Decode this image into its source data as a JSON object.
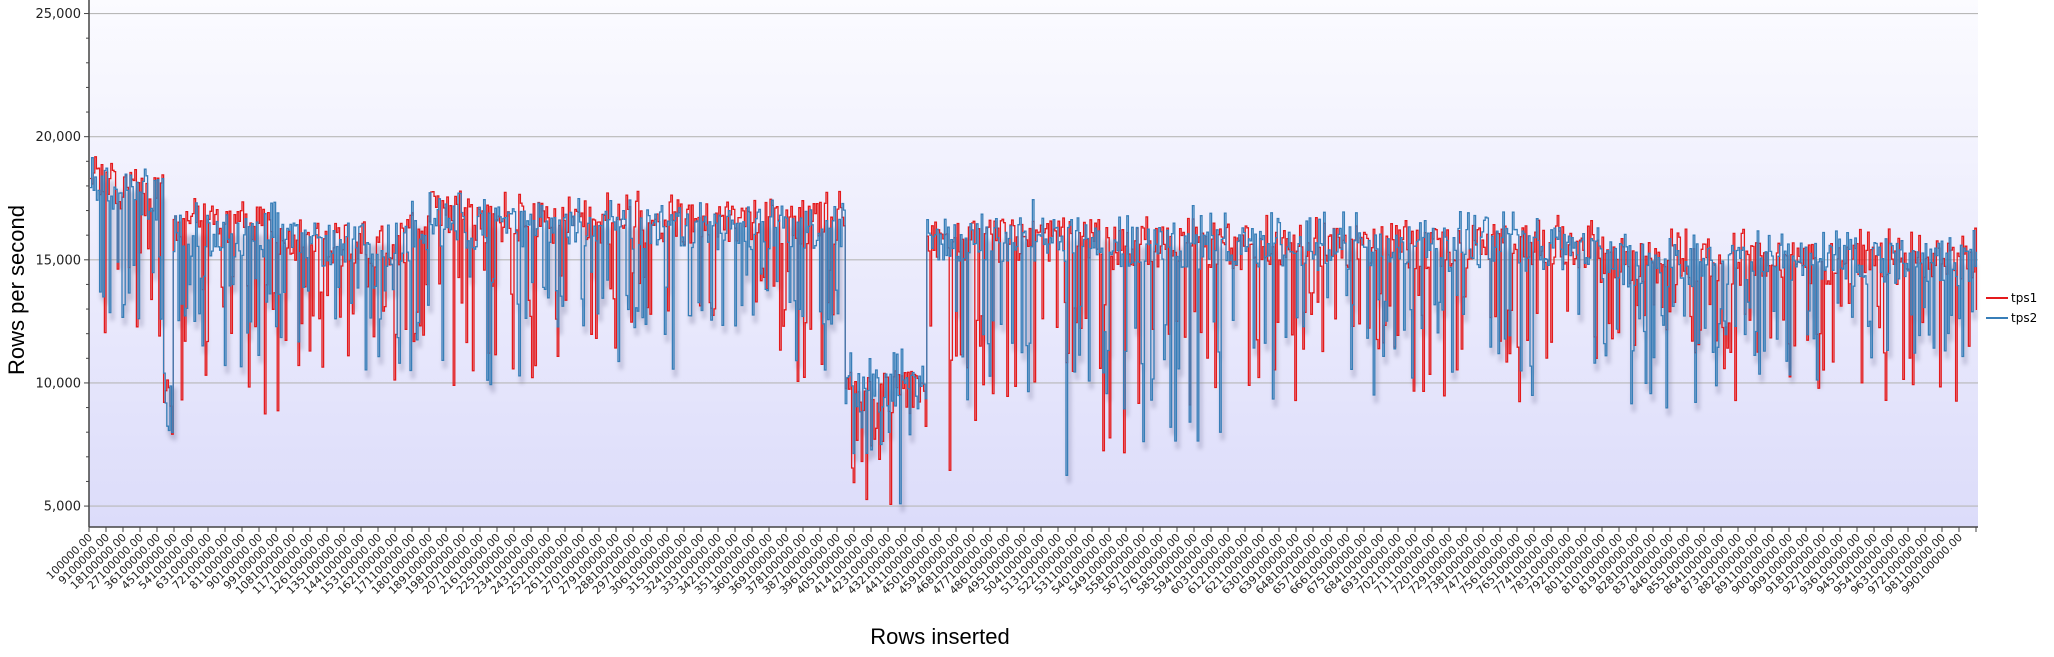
{
  "chart_data": {
    "type": "line",
    "title": "",
    "xlabel": "Rows inserted",
    "ylabel": "Rows per second",
    "ylim": [
      4150,
      25550
    ],
    "xlim": [
      100000,
      999100000
    ],
    "grid": {
      "horizontal": true,
      "vertical": false
    },
    "legend_position": "right",
    "y_ticks": [
      {
        "value": 5000,
        "label": "5,000"
      },
      {
        "value": 10000,
        "label": "10,000"
      },
      {
        "value": 15000,
        "label": "15,000"
      },
      {
        "value": 20000,
        "label": "20,000"
      },
      {
        "value": 25000,
        "label": "25,000"
      }
    ],
    "x_tick_start": 100000,
    "x_tick_step": 9000000,
    "x_tick_count": 111,
    "x_tick_label_suffix": ".00",
    "series": [
      {
        "name": "tps1",
        "color": "#e41a1c",
        "segments": [
          {
            "x_from": 100000,
            "x_to": 12000000,
            "high": 19200,
            "mid": 18300,
            "low": 11500,
            "min": 9600
          },
          {
            "x_from": 12000000,
            "x_to": 26000000,
            "high": 18800,
            "mid": 17800,
            "low": 12000,
            "min": 10800
          },
          {
            "x_from": 26000000,
            "x_to": 39000000,
            "high": 18500,
            "mid": 17500,
            "low": 12500,
            "min": 11000
          },
          {
            "x_from": 39000000,
            "x_to": 44000000,
            "high": 10200,
            "mid": 9500,
            "low": 7500,
            "min": 7000
          },
          {
            "x_from": 44000000,
            "x_to": 100000000,
            "high": 17500,
            "mid": 16300,
            "low": 12000,
            "min": 8700
          },
          {
            "x_from": 100000000,
            "x_to": 170000000,
            "high": 16700,
            "mid": 15600,
            "low": 11500,
            "min": 10000
          },
          {
            "x_from": 170000000,
            "x_to": 200000000,
            "high": 18300,
            "mid": 17000,
            "low": 11500,
            "min": 9900
          },
          {
            "x_from": 200000000,
            "x_to": 400000000,
            "high": 17800,
            "mid": 16500,
            "low": 12000,
            "min": 10000
          },
          {
            "x_from": 400000000,
            "x_to": 443000000,
            "high": 10500,
            "mid": 9600,
            "low": 6500,
            "min": 4600
          },
          {
            "x_from": 443000000,
            "x_to": 540000000,
            "high": 17000,
            "mid": 15800,
            "low": 9500,
            "min": 6000
          },
          {
            "x_from": 540000000,
            "x_to": 620000000,
            "high": 16800,
            "mid": 15500,
            "low": 9000,
            "min": 6500
          },
          {
            "x_from": 620000000,
            "x_to": 800000000,
            "high": 16800,
            "mid": 15500,
            "low": 11000,
            "min": 9200
          },
          {
            "x_from": 800000000,
            "x_to": 999100000,
            "high": 16300,
            "mid": 14800,
            "low": 11000,
            "min": 9100
          }
        ]
      },
      {
        "name": "tps2",
        "color": "#377eb8",
        "segments": [
          {
            "x_from": 100000,
            "x_to": 12000000,
            "high": 19500,
            "mid": 18200,
            "low": 10500,
            "min": 8500
          },
          {
            "x_from": 12000000,
            "x_to": 26000000,
            "high": 19300,
            "mid": 17800,
            "low": 11500,
            "min": 7200
          },
          {
            "x_from": 26000000,
            "x_to": 39000000,
            "high": 18800,
            "mid": 17500,
            "low": 12000,
            "min": 10800
          },
          {
            "x_from": 39000000,
            "x_to": 44000000,
            "high": 10400,
            "mid": 9800,
            "low": 8000,
            "min": 7800
          },
          {
            "x_from": 44000000,
            "x_to": 100000000,
            "high": 17500,
            "mid": 16000,
            "low": 12000,
            "min": 10200
          },
          {
            "x_from": 100000000,
            "x_to": 170000000,
            "high": 16500,
            "mid": 15600,
            "low": 11500,
            "min": 10000
          },
          {
            "x_from": 170000000,
            "x_to": 200000000,
            "high": 17800,
            "mid": 16300,
            "low": 11500,
            "min": 9900
          },
          {
            "x_from": 200000000,
            "x_to": 400000000,
            "high": 17500,
            "mid": 16300,
            "low": 12000,
            "min": 9800
          },
          {
            "x_from": 400000000,
            "x_to": 443000000,
            "high": 11700,
            "mid": 9700,
            "low": 6800,
            "min": 4800
          },
          {
            "x_from": 443000000,
            "x_to": 540000000,
            "high": 17500,
            "mid": 15800,
            "low": 9500,
            "min": 5800
          },
          {
            "x_from": 540000000,
            "x_to": 620000000,
            "high": 17200,
            "mid": 15500,
            "low": 9000,
            "min": 6600
          },
          {
            "x_from": 620000000,
            "x_to": 800000000,
            "high": 17000,
            "mid": 15400,
            "low": 11000,
            "min": 9300
          },
          {
            "x_from": 800000000,
            "x_to": 999100000,
            "high": 16200,
            "mid": 14800,
            "low": 11000,
            "min": 8900
          }
        ]
      }
    ],
    "annotations": []
  },
  "legend": {
    "items": [
      {
        "label": "tps1",
        "color": "#e41a1c"
      },
      {
        "label": "tps2",
        "color": "#377eb8"
      }
    ]
  },
  "axes": {
    "x_title": "Rows inserted",
    "y_title": "Rows per second"
  }
}
